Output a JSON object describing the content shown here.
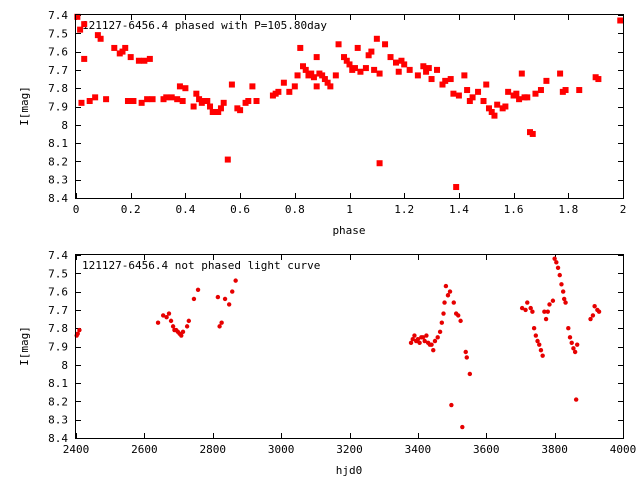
{
  "chart_data": [
    {
      "type": "scatter",
      "title": "121127-6456.4 phased with P=105.80day",
      "xlabel": "phase",
      "ylabel": "I[mag]",
      "xlim": [
        0,
        2
      ],
      "ylim": [
        8.4,
        7.4
      ],
      "y_inverted": true,
      "xticks": [
        "0",
        "0.2",
        "0.4",
        "0.6",
        "0.8",
        "1",
        "1.2",
        "1.4",
        "1.6",
        "1.8",
        "2"
      ],
      "xtick_values": [
        0,
        0.2,
        0.4,
        0.6,
        0.8,
        1.0,
        1.2,
        1.4,
        1.6,
        1.8,
        2.0
      ],
      "yticks": [
        "7.4",
        "7.5",
        "7.6",
        "7.7",
        "7.8",
        "7.9",
        "8",
        "8.1",
        "8.2",
        "8.3",
        "8.4"
      ],
      "ytick_values": [
        7.4,
        7.5,
        7.6,
        7.7,
        7.8,
        7.9,
        8.0,
        8.1,
        8.2,
        8.3,
        8.4
      ],
      "grid": false,
      "color": "#ff0000",
      "points": [
        [
          0.005,
          7.41
        ],
        [
          0.015,
          7.48
        ],
        [
          0.03,
          7.45
        ],
        [
          0.03,
          7.64
        ],
        [
          0.02,
          7.88
        ],
        [
          0.05,
          7.87
        ],
        [
          0.07,
          7.85
        ],
        [
          0.08,
          7.51
        ],
        [
          0.09,
          7.53
        ],
        [
          0.11,
          7.86
        ],
        [
          0.14,
          7.58
        ],
        [
          0.16,
          7.61
        ],
        [
          0.17,
          7.6
        ],
        [
          0.18,
          7.58
        ],
        [
          0.19,
          7.87
        ],
        [
          0.2,
          7.63
        ],
        [
          0.21,
          7.87
        ],
        [
          0.23,
          7.65
        ],
        [
          0.24,
          7.88
        ],
        [
          0.25,
          7.65
        ],
        [
          0.26,
          7.86
        ],
        [
          0.27,
          7.64
        ],
        [
          0.28,
          7.86
        ],
        [
          0.32,
          7.86
        ],
        [
          0.33,
          7.85
        ],
        [
          0.35,
          7.85
        ],
        [
          0.37,
          7.86
        ],
        [
          0.38,
          7.79
        ],
        [
          0.39,
          7.87
        ],
        [
          0.4,
          7.8
        ],
        [
          0.43,
          7.9
        ],
        [
          0.44,
          7.83
        ],
        [
          0.45,
          7.86
        ],
        [
          0.46,
          7.88
        ],
        [
          0.47,
          7.87
        ],
        [
          0.48,
          7.87
        ],
        [
          0.49,
          7.9
        ],
        [
          0.5,
          7.93
        ],
        [
          0.51,
          7.93
        ],
        [
          0.52,
          7.93
        ],
        [
          0.53,
          7.91
        ],
        [
          0.54,
          7.88
        ],
        [
          0.555,
          8.19
        ],
        [
          0.57,
          7.78
        ],
        [
          0.59,
          7.91
        ],
        [
          0.6,
          7.92
        ],
        [
          0.62,
          7.88
        ],
        [
          0.63,
          7.87
        ],
        [
          0.645,
          7.79
        ],
        [
          0.66,
          7.87
        ],
        [
          0.72,
          7.84
        ],
        [
          0.73,
          7.83
        ],
        [
          0.74,
          7.82
        ],
        [
          0.76,
          7.77
        ],
        [
          0.78,
          7.82
        ],
        [
          0.8,
          7.79
        ],
        [
          0.81,
          7.73
        ],
        [
          0.82,
          7.58
        ],
        [
          0.83,
          7.68
        ],
        [
          0.84,
          7.7
        ],
        [
          0.85,
          7.73
        ],
        [
          0.86,
          7.72
        ],
        [
          0.87,
          7.74
        ],
        [
          0.88,
          7.63
        ],
        [
          0.88,
          7.79
        ],
        [
          0.89,
          7.72
        ],
        [
          0.9,
          7.73
        ],
        [
          0.91,
          7.75
        ],
        [
          0.92,
          7.77
        ],
        [
          0.93,
          7.79
        ],
        [
          0.95,
          7.73
        ],
        [
          0.96,
          7.56
        ],
        [
          0.98,
          7.63
        ],
        [
          0.99,
          7.65
        ],
        [
          1.0,
          7.67
        ],
        [
          1.01,
          7.7
        ],
        [
          1.02,
          7.69
        ],
        [
          1.03,
          7.58
        ],
        [
          1.04,
          7.71
        ],
        [
          1.06,
          7.69
        ],
        [
          1.07,
          7.62
        ],
        [
          1.08,
          7.6
        ],
        [
          1.09,
          7.7
        ],
        [
          1.1,
          7.53
        ],
        [
          1.11,
          7.72
        ],
        [
          1.11,
          8.21
        ],
        [
          1.13,
          7.56
        ],
        [
          1.15,
          7.63
        ],
        [
          1.17,
          7.66
        ],
        [
          1.18,
          7.71
        ],
        [
          1.19,
          7.65
        ],
        [
          1.2,
          7.67
        ],
        [
          1.22,
          7.7
        ],
        [
          1.25,
          7.73
        ],
        [
          1.27,
          7.68
        ],
        [
          1.28,
          7.71
        ],
        [
          1.29,
          7.69
        ],
        [
          1.3,
          7.75
        ],
        [
          1.32,
          7.7
        ],
        [
          1.34,
          7.78
        ],
        [
          1.35,
          7.76
        ],
        [
          1.37,
          7.75
        ],
        [
          1.38,
          7.83
        ],
        [
          1.39,
          8.34
        ],
        [
          1.4,
          7.84
        ],
        [
          1.42,
          7.73
        ],
        [
          1.43,
          7.81
        ],
        [
          1.44,
          7.87
        ],
        [
          1.45,
          7.85
        ],
        [
          1.47,
          7.82
        ],
        [
          1.49,
          7.87
        ],
        [
          1.5,
          7.78
        ],
        [
          1.51,
          7.91
        ],
        [
          1.52,
          7.93
        ],
        [
          1.53,
          7.95
        ],
        [
          1.54,
          7.89
        ],
        [
          1.56,
          7.91
        ],
        [
          1.57,
          7.9
        ],
        [
          1.58,
          7.82
        ],
        [
          1.6,
          7.84
        ],
        [
          1.61,
          7.83
        ],
        [
          1.62,
          7.86
        ],
        [
          1.63,
          7.72
        ],
        [
          1.64,
          7.85
        ],
        [
          1.65,
          7.85
        ],
        [
          1.66,
          8.04
        ],
        [
          1.67,
          8.05
        ],
        [
          1.68,
          7.83
        ],
        [
          1.7,
          7.81
        ],
        [
          1.72,
          7.76
        ],
        [
          1.77,
          7.72
        ],
        [
          1.78,
          7.82
        ],
        [
          1.79,
          7.81
        ],
        [
          1.84,
          7.81
        ],
        [
          1.9,
          7.74
        ],
        [
          1.91,
          7.75
        ],
        [
          1.99,
          7.43
        ]
      ]
    },
    {
      "type": "scatter",
      "title": "121127-6456.4 not phased light curve",
      "xlabel": "hjd0",
      "ylabel": "I[mag]",
      "xlim": [
        2400,
        4000
      ],
      "ylim": [
        8.4,
        7.4
      ],
      "y_inverted": true,
      "xticks": [
        "2400",
        "2600",
        "2800",
        "3000",
        "3200",
        "3400",
        "3600",
        "3800",
        "4000"
      ],
      "xtick_values": [
        2400,
        2600,
        2800,
        3000,
        3200,
        3400,
        3600,
        3800,
        4000
      ],
      "yticks": [
        "7.4",
        "7.5",
        "7.6",
        "7.7",
        "7.8",
        "7.9",
        "8",
        "8.1",
        "8.2",
        "8.3",
        "8.4"
      ],
      "ytick_values": [
        7.4,
        7.5,
        7.6,
        7.7,
        7.8,
        7.9,
        8.0,
        8.1,
        8.2,
        8.3,
        8.4
      ],
      "grid": false,
      "color": "#e60000",
      "points": [
        [
          2402,
          7.84
        ],
        [
          2405,
          7.83
        ],
        [
          2410,
          7.81
        ],
        [
          2640,
          7.77
        ],
        [
          2655,
          7.73
        ],
        [
          2665,
          7.74
        ],
        [
          2672,
          7.72
        ],
        [
          2678,
          7.76
        ],
        [
          2684,
          7.79
        ],
        [
          2688,
          7.81
        ],
        [
          2693,
          7.81
        ],
        [
          2698,
          7.82
        ],
        [
          2703,
          7.83
        ],
        [
          2708,
          7.84
        ],
        [
          2713,
          7.82
        ],
        [
          2725,
          7.79
        ],
        [
          2730,
          7.76
        ],
        [
          2745,
          7.64
        ],
        [
          2757,
          7.59
        ],
        [
          2815,
          7.63
        ],
        [
          2820,
          7.79
        ],
        [
          2826,
          7.77
        ],
        [
          2836,
          7.64
        ],
        [
          2848,
          7.67
        ],
        [
          2857,
          7.6
        ],
        [
          2867,
          7.54
        ],
        [
          3380,
          7.88
        ],
        [
          3385,
          7.86
        ],
        [
          3390,
          7.84
        ],
        [
          3395,
          7.87
        ],
        [
          3400,
          7.86
        ],
        [
          3405,
          7.88
        ],
        [
          3410,
          7.85
        ],
        [
          3415,
          7.85
        ],
        [
          3420,
          7.87
        ],
        [
          3425,
          7.84
        ],
        [
          3430,
          7.88
        ],
        [
          3435,
          7.89
        ],
        [
          3440,
          7.89
        ],
        [
          3445,
          7.92
        ],
        [
          3450,
          7.87
        ],
        [
          3458,
          7.85
        ],
        [
          3465,
          7.82
        ],
        [
          3470,
          7.77
        ],
        [
          3475,
          7.72
        ],
        [
          3478,
          7.66
        ],
        [
          3482,
          7.57
        ],
        [
          3488,
          7.62
        ],
        [
          3494,
          7.6
        ],
        [
          3498,
          8.22
        ],
        [
          3505,
          7.66
        ],
        [
          3512,
          7.72
        ],
        [
          3518,
          7.73
        ],
        [
          3525,
          7.76
        ],
        [
          3530,
          8.34
        ],
        [
          3540,
          7.93
        ],
        [
          3543,
          7.96
        ],
        [
          3552,
          8.05
        ],
        [
          3705,
          7.69
        ],
        [
          3715,
          7.7
        ],
        [
          3720,
          7.66
        ],
        [
          3730,
          7.69
        ],
        [
          3735,
          7.71
        ],
        [
          3740,
          7.8
        ],
        [
          3745,
          7.84
        ],
        [
          3750,
          7.87
        ],
        [
          3755,
          7.89
        ],
        [
          3760,
          7.92
        ],
        [
          3765,
          7.95
        ],
        [
          3770,
          7.71
        ],
        [
          3775,
          7.75
        ],
        [
          3780,
          7.71
        ],
        [
          3785,
          7.67
        ],
        [
          3795,
          7.65
        ],
        [
          3800,
          7.42
        ],
        [
          3805,
          7.44
        ],
        [
          3810,
          7.47
        ],
        [
          3815,
          7.51
        ],
        [
          3820,
          7.56
        ],
        [
          3825,
          7.6
        ],
        [
          3828,
          7.64
        ],
        [
          3832,
          7.66
        ],
        [
          3840,
          7.8
        ],
        [
          3845,
          7.85
        ],
        [
          3850,
          7.88
        ],
        [
          3855,
          7.91
        ],
        [
          3860,
          7.93
        ],
        [
          3863,
          8.19
        ],
        [
          3866,
          7.89
        ],
        [
          3905,
          7.75
        ],
        [
          3912,
          7.73
        ],
        [
          3917,
          7.68
        ],
        [
          3925,
          7.7
        ],
        [
          3930,
          7.71
        ]
      ]
    }
  ]
}
